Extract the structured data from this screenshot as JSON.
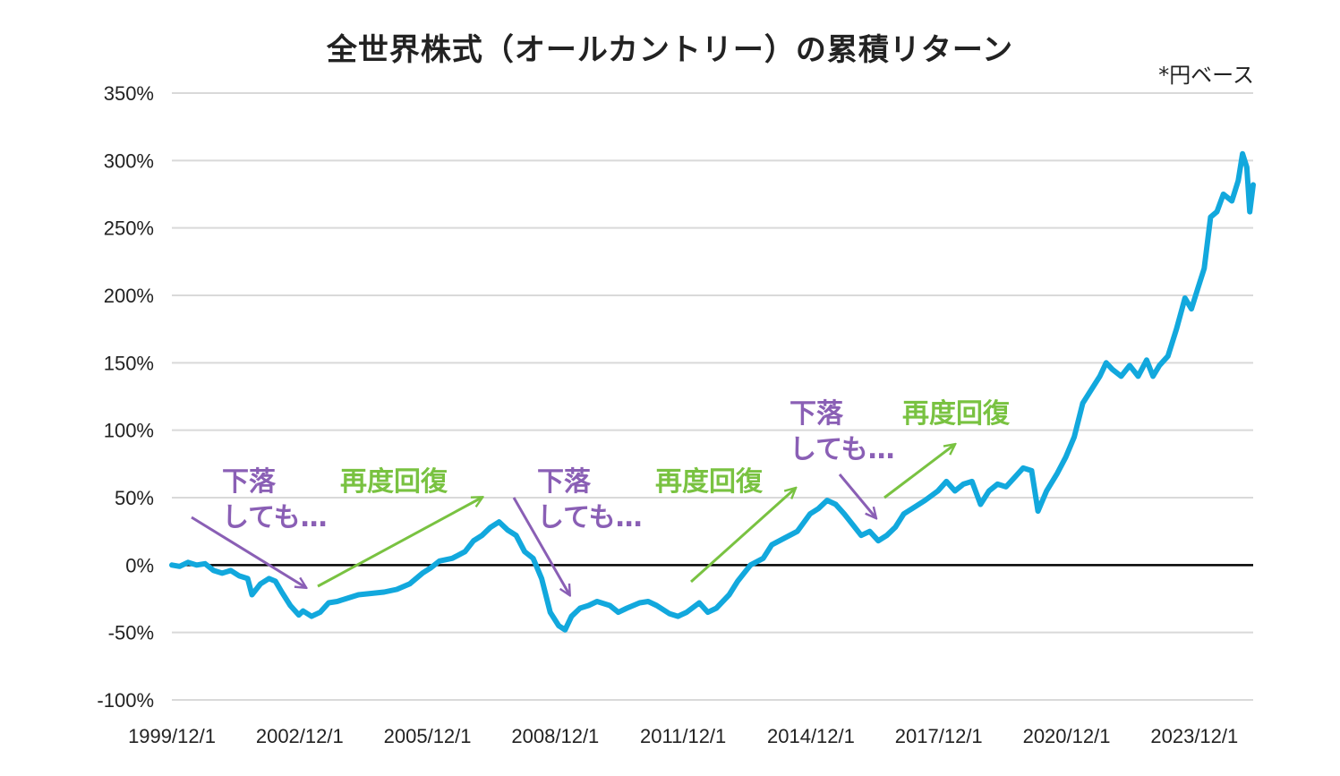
{
  "chart_data": {
    "type": "line",
    "title": "全世界株式（オールカントリー）の累積リターン",
    "note": "*円ベース",
    "xlabel": "",
    "ylabel": "",
    "ylim": [
      -100,
      350
    ],
    "xlim": [
      1999.92,
      2025.3
    ],
    "y_ticks": [
      -100,
      -50,
      0,
      50,
      100,
      150,
      200,
      250,
      300,
      350
    ],
    "y_tick_labels": [
      "-100%",
      "-50%",
      "0%",
      "50%",
      "100%",
      "150%",
      "200%",
      "250%",
      "300%",
      "350%"
    ],
    "x_tick_positions": [
      1999.92,
      2002.92,
      2005.92,
      2008.92,
      2011.92,
      2014.92,
      2017.92,
      2020.92,
      2023.92
    ],
    "x_tick_labels": [
      "1999/12/1",
      "2002/12/1",
      "2005/12/1",
      "2008/12/1",
      "2011/12/1",
      "2014/12/1",
      "2017/12/1",
      "2020/12/1",
      "2023/12/1"
    ],
    "grid": true,
    "series": [
      {
        "name": "累積リターン",
        "color": "#12a8dd",
        "points": [
          [
            1999.92,
            0
          ],
          [
            2000.1,
            -1
          ],
          [
            2000.3,
            2
          ],
          [
            2000.5,
            0
          ],
          [
            2000.7,
            1
          ],
          [
            2000.9,
            -4
          ],
          [
            2001.1,
            -6
          ],
          [
            2001.3,
            -4
          ],
          [
            2001.5,
            -8
          ],
          [
            2001.7,
            -10
          ],
          [
            2001.8,
            -22
          ],
          [
            2002.0,
            -14
          ],
          [
            2002.2,
            -10
          ],
          [
            2002.35,
            -12
          ],
          [
            2002.5,
            -20
          ],
          [
            2002.7,
            -30
          ],
          [
            2002.9,
            -37
          ],
          [
            2003.0,
            -34
          ],
          [
            2003.2,
            -38
          ],
          [
            2003.4,
            -35
          ],
          [
            2003.6,
            -28
          ],
          [
            2003.8,
            -27
          ],
          [
            2004.0,
            -25
          ],
          [
            2004.3,
            -22
          ],
          [
            2004.6,
            -21
          ],
          [
            2004.9,
            -20
          ],
          [
            2005.2,
            -18
          ],
          [
            2005.5,
            -14
          ],
          [
            2005.8,
            -6
          ],
          [
            2006.0,
            -2
          ],
          [
            2006.2,
            3
          ],
          [
            2006.5,
            5
          ],
          [
            2006.8,
            10
          ],
          [
            2007.0,
            18
          ],
          [
            2007.2,
            22
          ],
          [
            2007.4,
            28
          ],
          [
            2007.6,
            32
          ],
          [
            2007.8,
            26
          ],
          [
            2008.0,
            22
          ],
          [
            2008.2,
            10
          ],
          [
            2008.4,
            5
          ],
          [
            2008.6,
            -10
          ],
          [
            2008.8,
            -35
          ],
          [
            2009.0,
            -45
          ],
          [
            2009.15,
            -48
          ],
          [
            2009.3,
            -38
          ],
          [
            2009.5,
            -32
          ],
          [
            2009.7,
            -30
          ],
          [
            2009.9,
            -27
          ],
          [
            2010.2,
            -30
          ],
          [
            2010.4,
            -35
          ],
          [
            2010.6,
            -32
          ],
          [
            2010.9,
            -28
          ],
          [
            2011.1,
            -27
          ],
          [
            2011.3,
            -30
          ],
          [
            2011.6,
            -36
          ],
          [
            2011.8,
            -38
          ],
          [
            2012.0,
            -35
          ],
          [
            2012.3,
            -28
          ],
          [
            2012.5,
            -35
          ],
          [
            2012.7,
            -32
          ],
          [
            2013.0,
            -22
          ],
          [
            2013.2,
            -12
          ],
          [
            2013.5,
            0
          ],
          [
            2013.8,
            5
          ],
          [
            2014.0,
            15
          ],
          [
            2014.3,
            20
          ],
          [
            2014.6,
            25
          ],
          [
            2014.9,
            38
          ],
          [
            2015.1,
            42
          ],
          [
            2015.3,
            48
          ],
          [
            2015.5,
            45
          ],
          [
            2015.7,
            38
          ],
          [
            2015.9,
            30
          ],
          [
            2016.1,
            22
          ],
          [
            2016.3,
            25
          ],
          [
            2016.5,
            18
          ],
          [
            2016.7,
            22
          ],
          [
            2016.9,
            28
          ],
          [
            2017.1,
            38
          ],
          [
            2017.3,
            42
          ],
          [
            2017.6,
            48
          ],
          [
            2017.9,
            55
          ],
          [
            2018.1,
            62
          ],
          [
            2018.3,
            55
          ],
          [
            2018.5,
            60
          ],
          [
            2018.7,
            62
          ],
          [
            2018.9,
            45
          ],
          [
            2019.1,
            55
          ],
          [
            2019.3,
            60
          ],
          [
            2019.5,
            58
          ],
          [
            2019.7,
            65
          ],
          [
            2019.9,
            72
          ],
          [
            2020.1,
            70
          ],
          [
            2020.25,
            40
          ],
          [
            2020.45,
            55
          ],
          [
            2020.7,
            68
          ],
          [
            2020.9,
            80
          ],
          [
            2021.1,
            95
          ],
          [
            2021.3,
            120
          ],
          [
            2021.5,
            130
          ],
          [
            2021.7,
            140
          ],
          [
            2021.85,
            150
          ],
          [
            2022.0,
            145
          ],
          [
            2022.2,
            140
          ],
          [
            2022.4,
            148
          ],
          [
            2022.6,
            140
          ],
          [
            2022.8,
            152
          ],
          [
            2022.95,
            140
          ],
          [
            2023.1,
            148
          ],
          [
            2023.3,
            155
          ],
          [
            2023.5,
            175
          ],
          [
            2023.7,
            198
          ],
          [
            2023.85,
            190
          ],
          [
            2024.0,
            205
          ],
          [
            2024.15,
            220
          ],
          [
            2024.3,
            258
          ],
          [
            2024.45,
            262
          ],
          [
            2024.6,
            275
          ],
          [
            2024.8,
            270
          ],
          [
            2024.95,
            285
          ],
          [
            2025.05,
            305
          ],
          [
            2025.15,
            295
          ],
          [
            2025.22,
            262
          ],
          [
            2025.3,
            282
          ]
        ]
      }
    ],
    "annotations": [
      {
        "id": "drop1",
        "kind": "down",
        "lines": [
          "下落",
          "しても…"
        ]
      },
      {
        "id": "rec1",
        "kind": "up",
        "lines": [
          "再度回復"
        ]
      },
      {
        "id": "drop2",
        "kind": "down",
        "lines": [
          "下落",
          "しても…"
        ]
      },
      {
        "id": "rec2",
        "kind": "up",
        "lines": [
          "再度回復"
        ]
      },
      {
        "id": "drop3",
        "kind": "down",
        "lines": [
          "下落",
          "しても…"
        ]
      },
      {
        "id": "rec3",
        "kind": "up",
        "lines": [
          "再度回復"
        ]
      }
    ],
    "colors": {
      "line": "#12a8dd",
      "grid": "#d9d9d9",
      "zero": "#000000",
      "drop": "#8a5fb5",
      "recover": "#79c241"
    }
  }
}
